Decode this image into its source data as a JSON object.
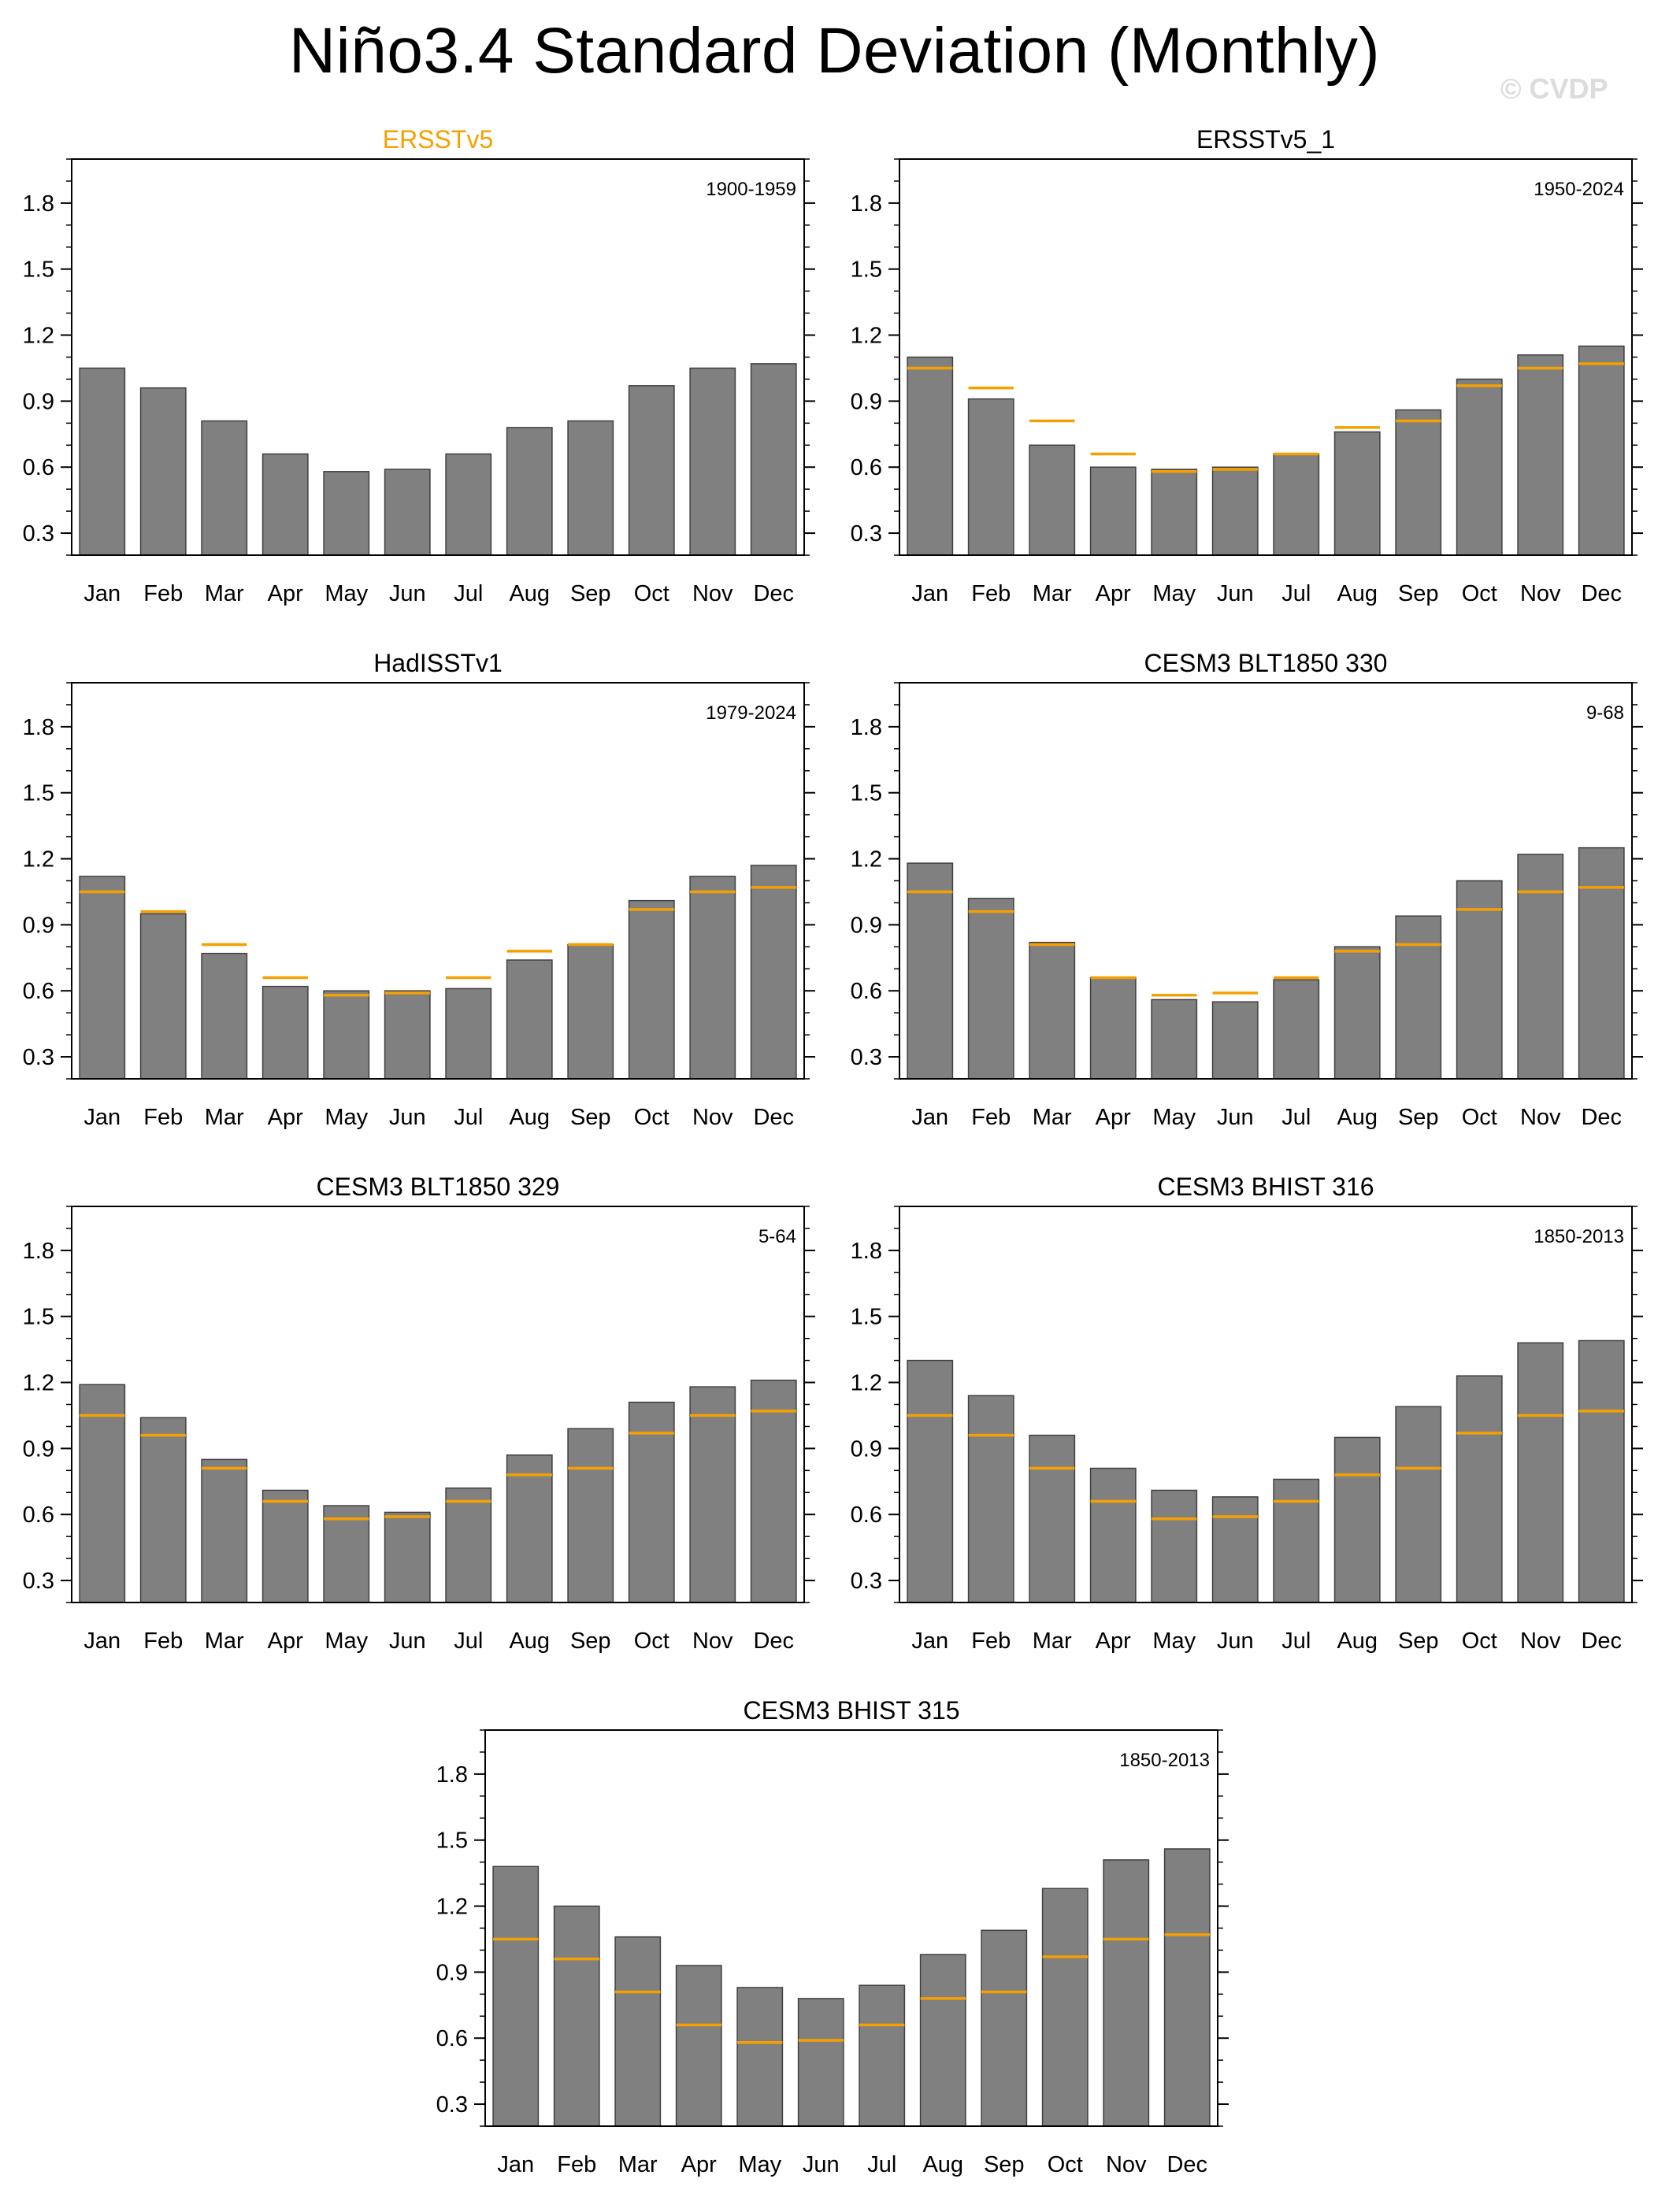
{
  "figure": {
    "title": "Niño3.4 Standard Deviation (Monthly)",
    "watermark": "© CVDP"
  },
  "colors": {
    "bar_fill": "#808080",
    "bar_edge": "#404040",
    "reference_line": "#f5a000",
    "highlight_title": "#f5a000",
    "axis": "#000000"
  },
  "chart_data": [
    {
      "type": "bar",
      "title": "ERSSTv5",
      "title_highlight": true,
      "period": "1900-1959",
      "categories": [
        "Jan",
        "Feb",
        "Mar",
        "Apr",
        "May",
        "Jun",
        "Jul",
        "Aug",
        "Sep",
        "Oct",
        "Nov",
        "Dec"
      ],
      "yticks": [
        "0.3",
        "0.6",
        "0.9",
        "1.2",
        "1.5",
        "1.8"
      ],
      "ylim": [
        0.2,
        2.0
      ],
      "values": [
        1.05,
        0.96,
        0.81,
        0.66,
        0.58,
        0.59,
        0.66,
        0.78,
        0.81,
        0.97,
        1.05,
        1.07
      ],
      "reference": null
    },
    {
      "type": "bar",
      "title": "ERSSTv5_1",
      "title_highlight": false,
      "period": "1950-2024",
      "categories": [
        "Jan",
        "Feb",
        "Mar",
        "Apr",
        "May",
        "Jun",
        "Jul",
        "Aug",
        "Sep",
        "Oct",
        "Nov",
        "Dec"
      ],
      "yticks": [
        "0.3",
        "0.6",
        "0.9",
        "1.2",
        "1.5",
        "1.8"
      ],
      "ylim": [
        0.2,
        2.0
      ],
      "values": [
        1.1,
        0.91,
        0.7,
        0.6,
        0.59,
        0.6,
        0.66,
        0.76,
        0.86,
        1.0,
        1.11,
        1.15
      ],
      "reference": [
        1.05,
        0.96,
        0.81,
        0.66,
        0.58,
        0.59,
        0.66,
        0.78,
        0.81,
        0.97,
        1.05,
        1.07
      ]
    },
    {
      "type": "bar",
      "title": "HadISSTv1",
      "title_highlight": false,
      "period": "1979-2024",
      "categories": [
        "Jan",
        "Feb",
        "Mar",
        "Apr",
        "May",
        "Jun",
        "Jul",
        "Aug",
        "Sep",
        "Oct",
        "Nov",
        "Dec"
      ],
      "yticks": [
        "0.3",
        "0.6",
        "0.9",
        "1.2",
        "1.5",
        "1.8"
      ],
      "ylim": [
        0.2,
        2.0
      ],
      "values": [
        1.12,
        0.95,
        0.77,
        0.62,
        0.6,
        0.6,
        0.61,
        0.74,
        0.81,
        1.01,
        1.12,
        1.17
      ],
      "reference": [
        1.05,
        0.96,
        0.81,
        0.66,
        0.58,
        0.59,
        0.66,
        0.78,
        0.81,
        0.97,
        1.05,
        1.07
      ]
    },
    {
      "type": "bar",
      "title": "CESM3 BLT1850 330",
      "title_highlight": false,
      "period": "9-68",
      "categories": [
        "Jan",
        "Feb",
        "Mar",
        "Apr",
        "May",
        "Jun",
        "Jul",
        "Aug",
        "Sep",
        "Oct",
        "Nov",
        "Dec"
      ],
      "yticks": [
        "0.3",
        "0.6",
        "0.9",
        "1.2",
        "1.5",
        "1.8"
      ],
      "ylim": [
        0.2,
        2.0
      ],
      "values": [
        1.18,
        1.02,
        0.82,
        0.66,
        0.56,
        0.55,
        0.65,
        0.8,
        0.94,
        1.1,
        1.22,
        1.25
      ],
      "reference": [
        1.05,
        0.96,
        0.81,
        0.66,
        0.58,
        0.59,
        0.66,
        0.78,
        0.81,
        0.97,
        1.05,
        1.07
      ]
    },
    {
      "type": "bar",
      "title": "CESM3 BLT1850 329",
      "title_highlight": false,
      "period": "5-64",
      "categories": [
        "Jan",
        "Feb",
        "Mar",
        "Apr",
        "May",
        "Jun",
        "Jul",
        "Aug",
        "Sep",
        "Oct",
        "Nov",
        "Dec"
      ],
      "yticks": [
        "0.3",
        "0.6",
        "0.9",
        "1.2",
        "1.5",
        "1.8"
      ],
      "ylim": [
        0.2,
        2.0
      ],
      "values": [
        1.19,
        1.04,
        0.85,
        0.71,
        0.64,
        0.61,
        0.72,
        0.87,
        0.99,
        1.11,
        1.18,
        1.21
      ],
      "reference": [
        1.05,
        0.96,
        0.81,
        0.66,
        0.58,
        0.59,
        0.66,
        0.78,
        0.81,
        0.97,
        1.05,
        1.07
      ]
    },
    {
      "type": "bar",
      "title": "CESM3 BHIST 316",
      "title_highlight": false,
      "period": "1850-2013",
      "categories": [
        "Jan",
        "Feb",
        "Mar",
        "Apr",
        "May",
        "Jun",
        "Jul",
        "Aug",
        "Sep",
        "Oct",
        "Nov",
        "Dec"
      ],
      "yticks": [
        "0.3",
        "0.6",
        "0.9",
        "1.2",
        "1.5",
        "1.8"
      ],
      "ylim": [
        0.2,
        2.0
      ],
      "values": [
        1.3,
        1.14,
        0.96,
        0.81,
        0.71,
        0.68,
        0.76,
        0.95,
        1.09,
        1.23,
        1.38,
        1.39
      ],
      "reference": [
        1.05,
        0.96,
        0.81,
        0.66,
        0.58,
        0.59,
        0.66,
        0.78,
        0.81,
        0.97,
        1.05,
        1.07
      ]
    },
    {
      "type": "bar",
      "title": "CESM3 BHIST 315",
      "title_highlight": false,
      "period": "1850-2013",
      "categories": [
        "Jan",
        "Feb",
        "Mar",
        "Apr",
        "May",
        "Jun",
        "Jul",
        "Aug",
        "Sep",
        "Oct",
        "Nov",
        "Dec"
      ],
      "yticks": [
        "0.3",
        "0.6",
        "0.9",
        "1.2",
        "1.5",
        "1.8"
      ],
      "ylim": [
        0.2,
        2.0
      ],
      "values": [
        1.38,
        1.2,
        1.06,
        0.93,
        0.83,
        0.78,
        0.84,
        0.98,
        1.09,
        1.28,
        1.41,
        1.46
      ],
      "reference": [
        1.05,
        0.96,
        0.81,
        0.66,
        0.58,
        0.59,
        0.66,
        0.78,
        0.81,
        0.97,
        1.05,
        1.07
      ]
    }
  ]
}
